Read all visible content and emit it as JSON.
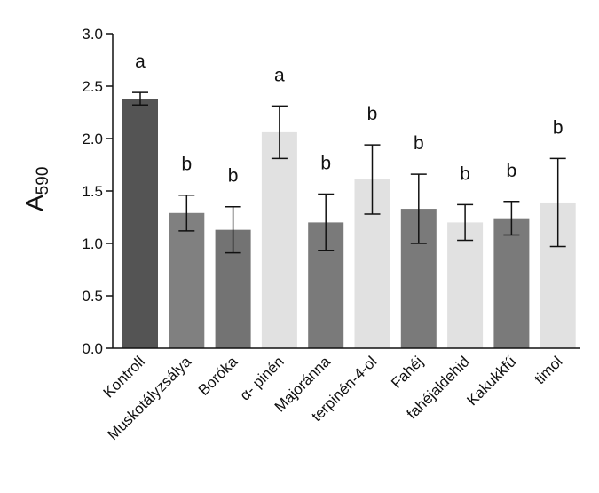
{
  "chart_data": {
    "type": "bar",
    "ylabel": {
      "main": "A",
      "sub": "590"
    },
    "ylim": [
      0,
      3.0
    ],
    "yticks": [
      "0.0",
      "0.5",
      "1.0",
      "1.5",
      "2.0",
      "2.5",
      "3.0"
    ],
    "grid": false,
    "categories": [
      "Kontroll",
      "Muskotályzsálya",
      "Boróka",
      "α- pinén",
      "Majoránna",
      "terpinén-4-ol",
      "Fahéj",
      "fahéjaldehid",
      "Kakukkfű",
      "timol"
    ],
    "values": [
      2.38,
      1.29,
      1.13,
      2.06,
      1.2,
      1.61,
      1.33,
      1.2,
      1.24,
      1.39
    ],
    "error": [
      0.06,
      0.17,
      0.22,
      0.25,
      0.27,
      0.33,
      0.33,
      0.17,
      0.16,
      0.42
    ],
    "significance": [
      "a",
      "b",
      "b",
      "a",
      "b",
      "b",
      "b",
      "b",
      "b",
      "b"
    ],
    "colors": [
      "#545454",
      "#808080",
      "#737373",
      "#e1e1e1",
      "#7a7a7a",
      "#e1e1e1",
      "#7a7a7a",
      "#e1e1e1",
      "#7a7a7a",
      "#e1e1e1"
    ]
  }
}
